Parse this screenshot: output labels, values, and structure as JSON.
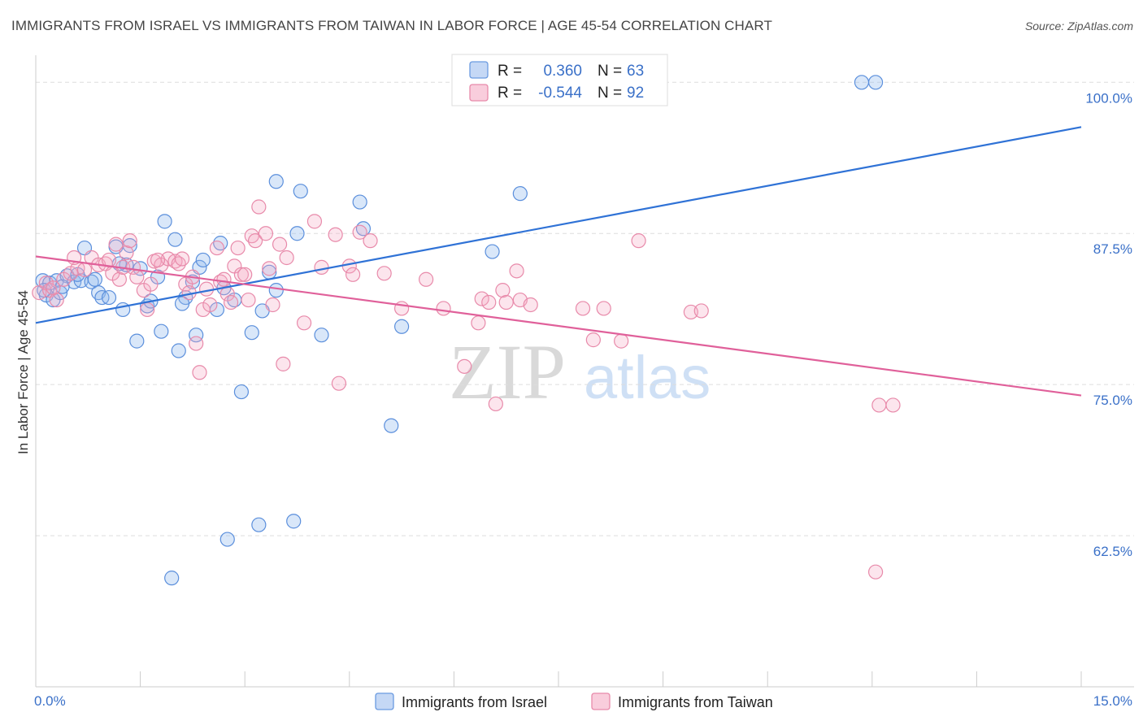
{
  "title": "IMMIGRANTS FROM ISRAEL VS IMMIGRANTS FROM TAIWAN IN LABOR FORCE | AGE 45-54 CORRELATION CHART",
  "source": "Source: ZipAtlas.com",
  "watermark": {
    "zip": "ZIP",
    "atlas": "atlas"
  },
  "legend": {
    "r_label": "R =",
    "n_label": "N =",
    "rows": [
      {
        "name": "Immigrants from Israel",
        "r": "0.360",
        "n": "63",
        "color": "#5b8fdc"
      },
      {
        "name": "Immigrants from Taiwan",
        "r": "-0.544",
        "n": "92",
        "color": "#e88aaa"
      }
    ]
  },
  "chart_data": {
    "type": "scatter",
    "title": "IMMIGRANTS FROM ISRAEL VS IMMIGRANTS FROM TAIWAN IN LABOR FORCE | AGE 45-54 CORRELATION CHART",
    "xlabel": "",
    "ylabel": "In Labor Force | Age 45-54",
    "xlim": [
      0,
      15
    ],
    "ylim": [
      50,
      101.5
    ],
    "x_tick_labels": [
      "0.0%",
      "15.0%"
    ],
    "y_ticks": [
      62.5,
      75.0,
      87.5,
      100.0
    ],
    "y_tick_labels": [
      "62.5%",
      "75.0%",
      "87.5%",
      "100.0%"
    ],
    "series": [
      {
        "name": "Immigrants from Israel",
        "color": "#5b8fdc",
        "trend": {
          "x": [
            0,
            15
          ],
          "y": [
            80.1,
            96.3
          ]
        },
        "points": [
          [
            0.1,
            83.6
          ],
          [
            0.15,
            82.4
          ],
          [
            0.2,
            83.4
          ],
          [
            0.25,
            82.0
          ],
          [
            0.3,
            83.6
          ],
          [
            0.35,
            82.6
          ],
          [
            0.45,
            84.0
          ],
          [
            0.55,
            83.5
          ],
          [
            0.65,
            83.6
          ],
          [
            0.7,
            86.3
          ],
          [
            0.8,
            83.5
          ],
          [
            0.9,
            82.6
          ],
          [
            0.95,
            82.2
          ],
          [
            1.05,
            82.2
          ],
          [
            1.15,
            86.4
          ],
          [
            1.25,
            81.2
          ],
          [
            1.3,
            84.9
          ],
          [
            1.35,
            86.5
          ],
          [
            1.45,
            78.6
          ],
          [
            1.5,
            84.6
          ],
          [
            1.6,
            81.5
          ],
          [
            1.65,
            81.9
          ],
          [
            1.75,
            83.9
          ],
          [
            1.8,
            79.4
          ],
          [
            1.85,
            88.5
          ],
          [
            1.95,
            59.0
          ],
          [
            2.0,
            87.0
          ],
          [
            2.05,
            77.8
          ],
          [
            2.15,
            82.2
          ],
          [
            2.25,
            83.5
          ],
          [
            2.3,
            79.1
          ],
          [
            2.35,
            84.7
          ],
          [
            2.4,
            85.3
          ],
          [
            2.6,
            81.2
          ],
          [
            2.65,
            86.7
          ],
          [
            2.7,
            83.0
          ],
          [
            2.75,
            62.2
          ],
          [
            2.85,
            82.0
          ],
          [
            2.95,
            74.4
          ],
          [
            3.1,
            79.3
          ],
          [
            3.2,
            63.4
          ],
          [
            3.25,
            81.1
          ],
          [
            3.35,
            84.3
          ],
          [
            3.45,
            82.8
          ],
          [
            3.45,
            91.8
          ],
          [
            3.7,
            63.7
          ],
          [
            3.75,
            87.5
          ],
          [
            3.8,
            91.0
          ],
          [
            4.1,
            79.1
          ],
          [
            4.65,
            90.1
          ],
          [
            4.7,
            87.9
          ],
          [
            5.1,
            71.6
          ],
          [
            5.25,
            79.8
          ],
          [
            6.55,
            86.0
          ],
          [
            6.95,
            90.8
          ],
          [
            11.85,
            100.0
          ],
          [
            12.05,
            100.0
          ],
          [
            0.12,
            82.8
          ],
          [
            0.38,
            83.1
          ],
          [
            0.6,
            84.1
          ],
          [
            0.85,
            83.7
          ],
          [
            1.2,
            85.0
          ],
          [
            2.1,
            81.7
          ]
        ]
      },
      {
        "name": "Immigrants from Taiwan",
        "color": "#e88aaa",
        "trend": {
          "x": [
            0,
            15
          ],
          "y": [
            85.6,
            74.1
          ]
        },
        "points": [
          [
            0.05,
            82.6
          ],
          [
            0.15,
            83.4
          ],
          [
            0.2,
            82.8
          ],
          [
            0.3,
            82.0
          ],
          [
            0.4,
            83.7
          ],
          [
            0.5,
            84.2
          ],
          [
            0.6,
            84.6
          ],
          [
            0.7,
            84.5
          ],
          [
            0.8,
            85.5
          ],
          [
            0.9,
            84.9
          ],
          [
            1.0,
            85.0
          ],
          [
            1.05,
            85.3
          ],
          [
            1.1,
            84.2
          ],
          [
            1.2,
            83.7
          ],
          [
            1.25,
            84.7
          ],
          [
            1.3,
            85.9
          ],
          [
            1.35,
            86.9
          ],
          [
            1.4,
            84.7
          ],
          [
            1.45,
            83.9
          ],
          [
            1.55,
            82.8
          ],
          [
            1.6,
            81.2
          ],
          [
            1.65,
            83.3
          ],
          [
            1.7,
            85.2
          ],
          [
            1.8,
            84.9
          ],
          [
            1.9,
            85.4
          ],
          [
            2.0,
            85.2
          ],
          [
            2.05,
            85.0
          ],
          [
            2.1,
            85.4
          ],
          [
            2.15,
            83.3
          ],
          [
            2.2,
            82.6
          ],
          [
            2.25,
            83.9
          ],
          [
            2.3,
            78.4
          ],
          [
            2.35,
            76.0
          ],
          [
            2.4,
            81.2
          ],
          [
            2.45,
            82.9
          ],
          [
            2.5,
            81.6
          ],
          [
            2.6,
            86.3
          ],
          [
            2.65,
            83.5
          ],
          [
            2.7,
            83.7
          ],
          [
            2.75,
            82.5
          ],
          [
            2.8,
            81.8
          ],
          [
            2.85,
            84.8
          ],
          [
            2.9,
            86.3
          ],
          [
            2.95,
            84.1
          ],
          [
            3.0,
            84.1
          ],
          [
            3.05,
            82.0
          ],
          [
            3.1,
            87.3
          ],
          [
            3.15,
            86.9
          ],
          [
            3.2,
            89.7
          ],
          [
            3.3,
            87.5
          ],
          [
            3.4,
            81.6
          ],
          [
            3.5,
            86.6
          ],
          [
            3.55,
            76.7
          ],
          [
            3.6,
            85.5
          ],
          [
            3.85,
            80.1
          ],
          [
            4.0,
            88.5
          ],
          [
            4.1,
            84.7
          ],
          [
            4.3,
            87.4
          ],
          [
            4.35,
            75.1
          ],
          [
            4.5,
            84.8
          ],
          [
            4.55,
            84.1
          ],
          [
            4.65,
            87.6
          ],
          [
            4.8,
            86.9
          ],
          [
            5.0,
            84.2
          ],
          [
            5.25,
            81.3
          ],
          [
            5.6,
            83.7
          ],
          [
            5.85,
            81.3
          ],
          [
            6.15,
            76.5
          ],
          [
            6.35,
            80.1
          ],
          [
            6.4,
            82.1
          ],
          [
            6.5,
            81.8
          ],
          [
            6.6,
            73.4
          ],
          [
            6.7,
            82.8
          ],
          [
            6.75,
            81.8
          ],
          [
            6.9,
            84.4
          ],
          [
            6.95,
            82.0
          ],
          [
            7.1,
            81.6
          ],
          [
            7.85,
            81.3
          ],
          [
            8.0,
            78.7
          ],
          [
            8.15,
            81.3
          ],
          [
            8.4,
            78.6
          ],
          [
            8.65,
            86.9
          ],
          [
            9.4,
            81.0
          ],
          [
            9.55,
            81.1
          ],
          [
            12.05,
            59.5
          ],
          [
            12.1,
            73.3
          ],
          [
            12.3,
            73.3
          ],
          [
            0.25,
            83.0
          ],
          [
            0.55,
            85.5
          ],
          [
            1.15,
            86.6
          ],
          [
            1.75,
            85.3
          ],
          [
            3.35,
            84.6
          ]
        ]
      }
    ]
  }
}
